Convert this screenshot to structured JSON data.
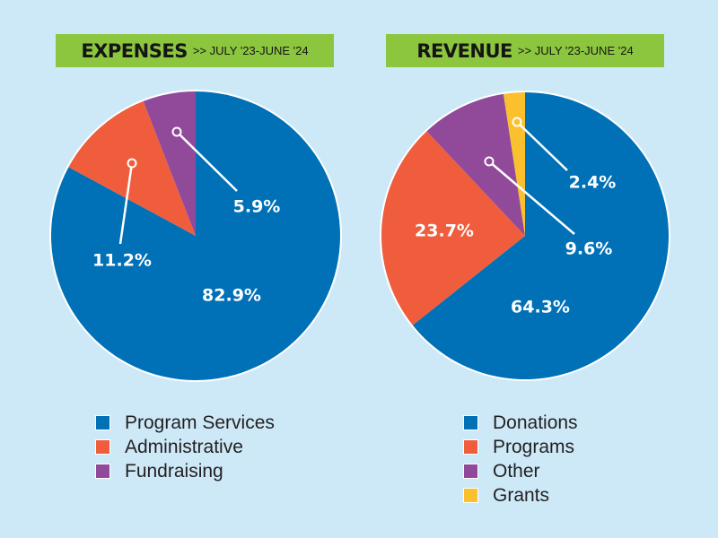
{
  "charts": [
    {
      "title": "EXPENSES",
      "subtitle": ">> JULY '23-JUNE '24",
      "legend": [
        {
          "label": "Program Services",
          "color": "#0071b7"
        },
        {
          "label": "Administrative",
          "color": "#ef5d3d"
        },
        {
          "label": "Fundraising",
          "color": "#914a9a"
        }
      ]
    },
    {
      "title": "REVENUE",
      "subtitle": ">> JULY '23-JUNE '24",
      "legend": [
        {
          "label": "Donations",
          "color": "#0071b7"
        },
        {
          "label": "Programs",
          "color": "#ef5d3d"
        },
        {
          "label": "Other",
          "color": "#914a9a"
        },
        {
          "label": "Grants",
          "color": "#fbc02d"
        }
      ]
    }
  ],
  "chart_data": [
    {
      "type": "pie",
      "title": "EXPENSES",
      "subtitle": ">> JULY '23-JUNE '24",
      "slices": [
        {
          "label": "Program Services",
          "value": 82.9,
          "value_label": "82.9%",
          "color": "#0071b7"
        },
        {
          "label": "Administrative",
          "value": 11.2,
          "value_label": "11.2%",
          "color": "#ef5d3d"
        },
        {
          "label": "Fundraising",
          "value": 5.9,
          "value_label": "5.9%",
          "color": "#914a9a"
        }
      ],
      "legend_position": "bottom"
    },
    {
      "type": "pie",
      "title": "REVENUE",
      "subtitle": ">> JULY '23-JUNE '24",
      "slices": [
        {
          "label": "Donations",
          "value": 64.3,
          "value_label": "64.3%",
          "color": "#0071b7"
        },
        {
          "label": "Programs",
          "value": 23.7,
          "value_label": "23.7%",
          "color": "#ef5d3d"
        },
        {
          "label": "Other",
          "value": 9.6,
          "value_label": "9.6%",
          "color": "#914a9a"
        },
        {
          "label": "Grants",
          "value": 2.4,
          "value_label": "2.4%",
          "color": "#fbc02d"
        }
      ],
      "legend_position": "bottom"
    }
  ]
}
